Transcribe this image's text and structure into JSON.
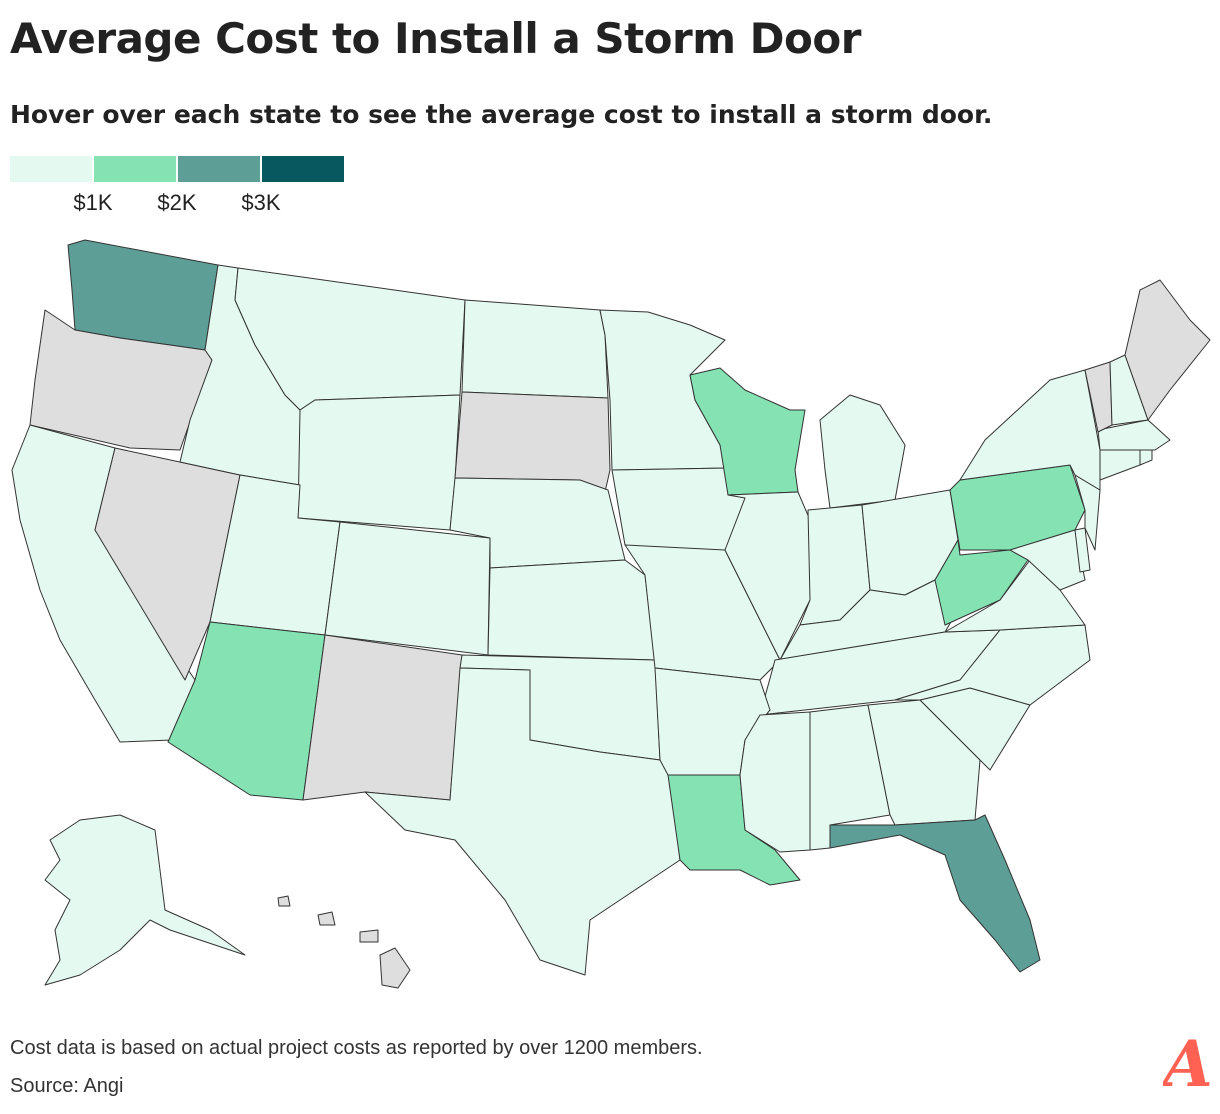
{
  "title": "Average Cost to Install a Storm Door",
  "subtitle": "Hover over each state to see the average cost to install a storm door.",
  "legend": {
    "colors": [
      "#e4f9ef",
      "#84e2b3",
      "#5d9e96",
      "#07595f"
    ],
    "thresholds": [
      "$1K",
      "$2K",
      "$3K"
    ]
  },
  "map": {
    "no_data_color": "#dedede",
    "states": {
      "WA": "high",
      "OR": "no-data",
      "CA": "low",
      "NV": "no-data",
      "ID": "low",
      "MT": "low",
      "WY": "low",
      "UT": "low",
      "AZ": "mid",
      "CO": "low",
      "NM": "no-data",
      "ND": "low",
      "SD": "no-data",
      "NE": "low",
      "KS": "low",
      "OK": "low",
      "TX": "low",
      "MN": "low",
      "IA": "low",
      "MO": "low",
      "AR": "low",
      "LA": "mid",
      "WI": "mid",
      "IL": "low",
      "MI": "low",
      "IN": "low",
      "OH": "low",
      "KY": "low",
      "TN": "low",
      "MS": "low",
      "AL": "low",
      "GA": "low",
      "FL": "high",
      "SC": "low",
      "NC": "low",
      "VA": "low",
      "WV": "mid",
      "PA": "mid",
      "NY": "low",
      "VT": "no-data",
      "NH": "low",
      "ME": "no-data",
      "MA": "low",
      "CT": "low",
      "RI": "low",
      "NJ": "low",
      "DE": "low",
      "MD": "low",
      "AK": "low",
      "HI": "no-data"
    }
  },
  "footer": {
    "note": "Cost data is based on actual project costs as reported by over 1200 members.",
    "source": "Source: Angi"
  },
  "brand": {
    "logo_letter": "A",
    "logo_color": "#ff6153"
  }
}
